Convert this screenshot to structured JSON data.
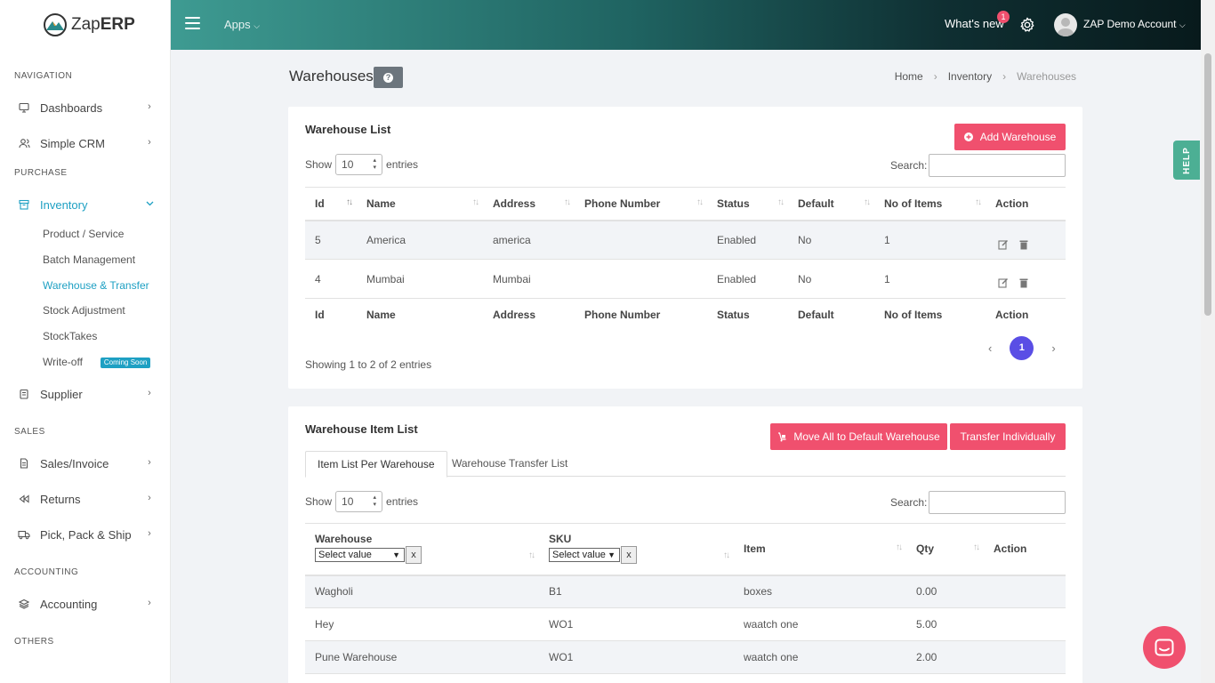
{
  "app": {
    "logo_prefix": "Zap",
    "logo_suffix": "ERP"
  },
  "topbar": {
    "apps_label": "Apps",
    "whats_new": "What's new",
    "whats_new_count": "1",
    "account": "ZAP Demo Account"
  },
  "sidebar": {
    "sections": {
      "navigation": "NAVIGATION",
      "purchase": "PURCHASE",
      "sales": "SALES",
      "accounting": "ACCOUNTING",
      "others": "OTHERS"
    },
    "items": {
      "dashboards": "Dashboards",
      "simple_crm": "Simple CRM",
      "inventory": "Inventory",
      "supplier": "Supplier",
      "sales_invoice": "Sales/Invoice",
      "returns": "Returns",
      "pick_pack_ship": "Pick, Pack & Ship",
      "accounting": "Accounting"
    },
    "inventory_sub": {
      "product_service": "Product / Service",
      "batch_management": "Batch Management",
      "warehouse_transfer": "Warehouse & Transfer",
      "stock_adjustment": "Stock Adjustment",
      "stocktakes": "StockTakes",
      "write_off": "Write-off",
      "coming_soon": "Coming Soon"
    }
  },
  "help_tab": "HELP",
  "page": {
    "title": "Warehouses",
    "help_icon": "?"
  },
  "breadcrumb": {
    "home": "Home",
    "inventory": "Inventory",
    "current": "Warehouses"
  },
  "warehouse_list": {
    "title": "Warehouse List",
    "add_button": "Add Warehouse",
    "show_label": "Show",
    "show_value": "10",
    "entries_label": "entries",
    "search_label": "Search:",
    "columns": [
      "Id",
      "Name",
      "Address",
      "Phone Number",
      "Status",
      "Default",
      "No of Items",
      "Action"
    ],
    "rows": [
      {
        "id": "5",
        "name": "America",
        "address": "america",
        "phone": "",
        "status": "Enabled",
        "default": "No",
        "items": "1"
      },
      {
        "id": "4",
        "name": "Mumbai",
        "address": "Mumbai",
        "phone": "",
        "status": "Enabled",
        "default": "No",
        "items": "1"
      }
    ],
    "info": "Showing 1 to 2 of 2 entries",
    "current_page": "1"
  },
  "item_list": {
    "title": "Warehouse Item List",
    "move_all_button": "Move All to Default Warehouse",
    "transfer_button": "Transfer Individually",
    "tabs": [
      "Item List Per Warehouse",
      "Warehouse Transfer List"
    ],
    "show_label": "Show",
    "show_value": "10",
    "entries_label": "entries",
    "search_label": "Search:",
    "columns": {
      "warehouse": "Warehouse",
      "sku": "SKU",
      "item": "Item",
      "qty": "Qty",
      "action": "Action"
    },
    "filter_placeholder": "Select value",
    "filter_clear": "x",
    "rows": [
      {
        "warehouse": "Wagholi",
        "sku": "B1",
        "item": "boxes",
        "qty": "0.00"
      },
      {
        "warehouse": "Hey",
        "sku": "WO1",
        "item": "waatch one",
        "qty": "5.00"
      },
      {
        "warehouse": "Pune Warehouse",
        "sku": "WO1",
        "item": "waatch one",
        "qty": "2.00"
      }
    ]
  }
}
